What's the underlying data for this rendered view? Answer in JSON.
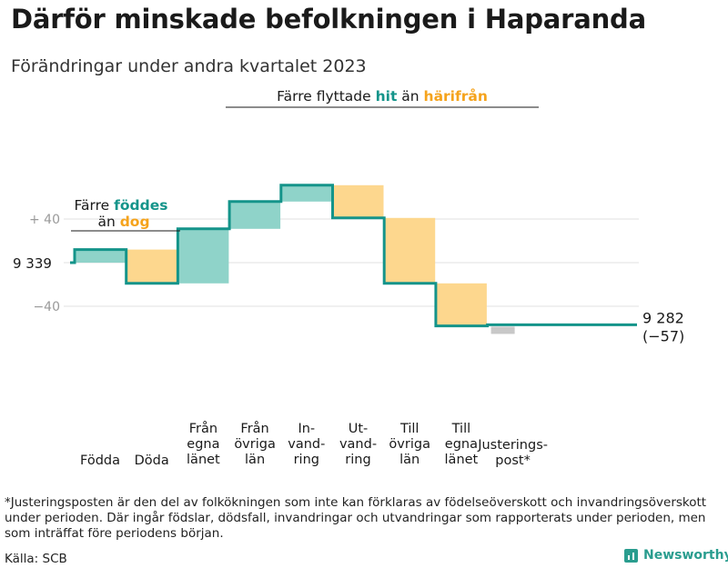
{
  "title": "Därför minskade befolkningen i Haparanda",
  "subtitle": "Förändringar under andra kvartalet 2023",
  "footnote": "*Justeringsposten är den del av folkökningen som inte kan förklaras av födelseöverskott och invandringsöverskott under perioden. Där ingår födslar, dödsfall, invandringar och utvandringar som rapporterats under perioden, men som inträffat före periodens början.",
  "source": "Källa: SCB",
  "brand": "Newsworthy",
  "colors": {
    "increase": "#8fd3c9",
    "decrease": "#fdd78e",
    "adjustment": "#c8c8c8",
    "line": "#14948a",
    "accent_teal": "#14948a",
    "accent_orange": "#f5a31c"
  },
  "chart_data": {
    "type": "waterfall",
    "start_value": 9339,
    "start_label": "9 339",
    "end_value": 9282,
    "end_label": "9 282",
    "end_change_label": "(−57)",
    "y_ticks": [
      {
        "value": 40,
        "label": "+ 40"
      },
      {
        "value": -40,
        "label": "−40"
      }
    ],
    "ylim": [
      -57,
      70
    ],
    "steps": [
      {
        "label": "Födda",
        "change": 12,
        "kind": "increase"
      },
      {
        "label": "Döda",
        "change": -31,
        "kind": "decrease"
      },
      {
        "label": "Från egna länet",
        "change": 50,
        "kind": "increase"
      },
      {
        "label": "Från övriga län",
        "change": 25,
        "kind": "increase"
      },
      {
        "label": "In-vandring",
        "change": 15,
        "kind": "increase"
      },
      {
        "label": "Ut-vandring",
        "change": -30,
        "kind": "decrease"
      },
      {
        "label": "Till övriga län",
        "change": -60,
        "kind": "decrease"
      },
      {
        "label": "Till egna länet",
        "change": -39,
        "kind": "decrease"
      },
      {
        "label": "Justerings-post*",
        "change": 1,
        "kind": "adjustment"
      }
    ],
    "category_labels": [
      [
        "Födda"
      ],
      [
        "Döda"
      ],
      [
        "Från",
        "egna",
        "länet"
      ],
      [
        "Från",
        "övriga",
        "län"
      ],
      [
        "In-",
        "vand-",
        "ring"
      ],
      [
        "Ut-",
        "vand-",
        "ring"
      ],
      [
        "Till",
        "övriga",
        "län"
      ],
      [
        "Till",
        "egna",
        "länet"
      ],
      [
        "Justerings-",
        "post*"
      ]
    ],
    "annotations": [
      {
        "id": "births",
        "parts": [
          "Färre ",
          "föddes",
          "än ",
          "dog"
        ]
      },
      {
        "id": "migration",
        "parts": [
          "Färre flyttade ",
          "hit",
          " än ",
          "härifrån"
        ]
      }
    ]
  }
}
